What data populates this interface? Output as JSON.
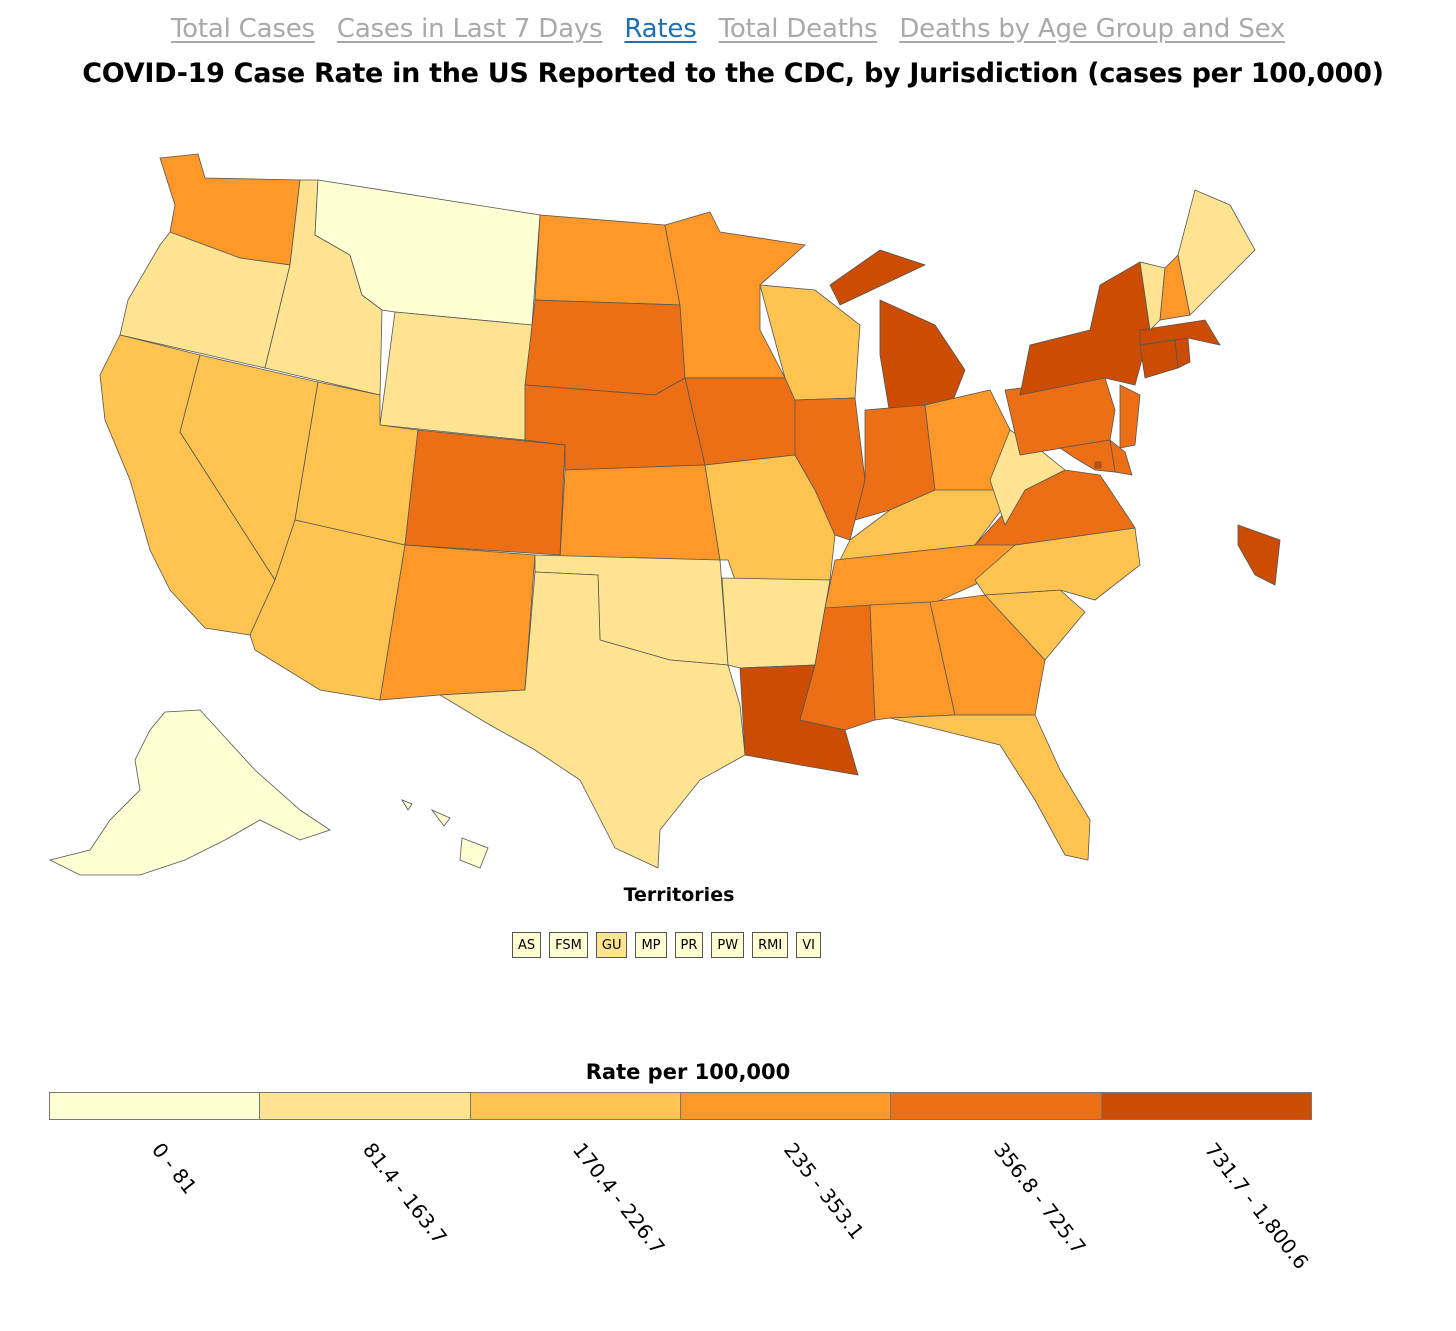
{
  "tabs": [
    {
      "label": "Total Cases",
      "active": false
    },
    {
      "label": "Cases in Last 7 Days",
      "active": false
    },
    {
      "label": "Rates",
      "active": true
    },
    {
      "label": "Total Deaths",
      "active": false
    },
    {
      "label": "Deaths by Age Group and Sex",
      "active": false
    }
  ],
  "title": "COVID-19 Case Rate in the US Reported to the CDC, by Jurisdiction (cases per 100,000)",
  "territories": {
    "label": "Territories",
    "items": [
      {
        "code": "AS",
        "bin": 0
      },
      {
        "code": "FSM",
        "bin": 0
      },
      {
        "code": "GU",
        "bin": 1
      },
      {
        "code": "MP",
        "bin": 0
      },
      {
        "code": "PR",
        "bin": 0
      },
      {
        "code": "PW",
        "bin": 0
      },
      {
        "code": "RMI",
        "bin": 0
      },
      {
        "code": "VI",
        "bin": 0
      }
    ]
  },
  "legend": {
    "title": "Rate per 100,000",
    "bins": [
      {
        "label": "0 - 81",
        "color": "#ffffd4"
      },
      {
        "label": "81.4 - 163.7",
        "color": "#fee391"
      },
      {
        "label": "170.4 - 226.7",
        "color": "#fec44f"
      },
      {
        "label": "235 - 353.1",
        "color": "#fe9929"
      },
      {
        "label": "356.8 - 725.7",
        "color": "#ec6f15"
      },
      {
        "label": "731.7 - 1,800.6",
        "color": "#cc4c02"
      }
    ]
  },
  "state_bins": {
    "WA": 3,
    "OR": 1,
    "CA": 2,
    "NV": 2,
    "ID": 1,
    "MT": 0,
    "WY": 1,
    "UT": 2,
    "AZ": 2,
    "CO": 4,
    "NM": 3,
    "ND": 3,
    "SD": 4,
    "NE": 4,
    "KS": 3,
    "OK": 1,
    "TX": 1,
    "MN": 3,
    "IA": 4,
    "MO": 2,
    "AR": 1,
    "LA": 5,
    "WI": 2,
    "IL": 4,
    "MI": 5,
    "IN": 4,
    "OH": 3,
    "KY": 2,
    "TN": 3,
    "MS": 4,
    "AL": 3,
    "GA": 3,
    "FL": 2,
    "SC": 2,
    "NC": 2,
    "VA": 4,
    "WV": 1,
    "PA": 4,
    "NY": 5,
    "NJ": 4,
    "DE": 4,
    "MD": 4,
    "DC": 5,
    "CT": 5,
    "RI": 5,
    "MA": 5,
    "VT": 1,
    "NH": 3,
    "ME": 1,
    "AK": 0,
    "HI": 0
  }
}
